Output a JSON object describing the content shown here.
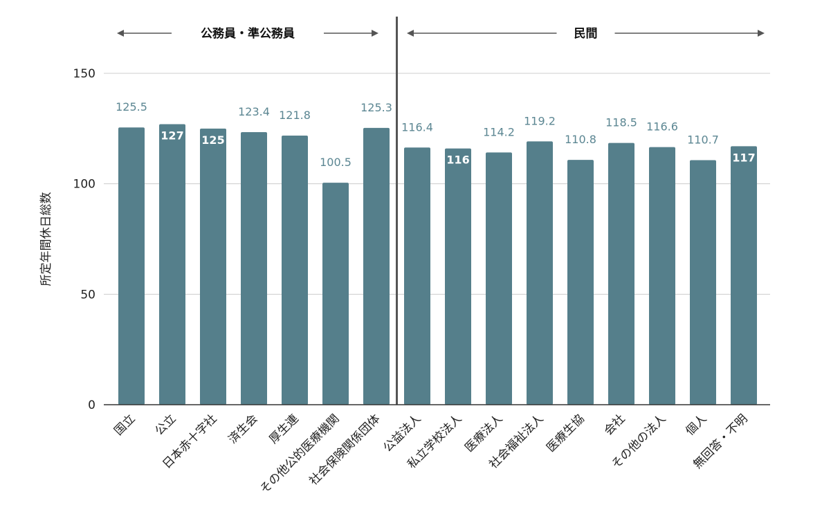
{
  "chart_data": {
    "type": "bar",
    "ylabel": "所定年間休日総数",
    "ylim": [
      0,
      150
    ],
    "yticks": [
      0,
      50,
      100,
      150
    ],
    "yticks_text": [
      "0",
      "50",
      "100",
      "150"
    ],
    "grid": true,
    "bar_color": "#557f8b",
    "label_color_outside": "#5b8692",
    "label_color_inside": "#ffffff",
    "groups": [
      {
        "label": "公務員・準公務員",
        "from": 0,
        "to": 6
      },
      {
        "label": "民間",
        "from": 7,
        "to": 15
      }
    ],
    "categories": [
      "国立",
      "公立",
      "日本赤十字社",
      "済生会",
      "厚生連",
      "その他公的医療機関",
      "社会保険関係団体",
      "公益法人",
      "私立学校法人",
      "医療法人",
      "社会福祉法人",
      "医療生協",
      "会社",
      "その他の法人",
      "個人",
      "無回答・不明"
    ],
    "values": [
      125.5,
      127,
      125,
      123.4,
      121.8,
      100.5,
      125.3,
      116.4,
      116,
      114.2,
      119.2,
      110.8,
      118.5,
      116.6,
      110.7,
      117
    ],
    "data_labels": [
      "125.5",
      "127",
      "125",
      "123.4",
      "121.8",
      "100.5",
      "125.3",
      "116.4",
      "116",
      "114.2",
      "119.2",
      "110.8",
      "118.5",
      "116.6",
      "110.7",
      "117"
    ],
    "label_inside": [
      false,
      true,
      true,
      false,
      false,
      false,
      false,
      false,
      true,
      false,
      false,
      false,
      false,
      false,
      false,
      true
    ]
  }
}
